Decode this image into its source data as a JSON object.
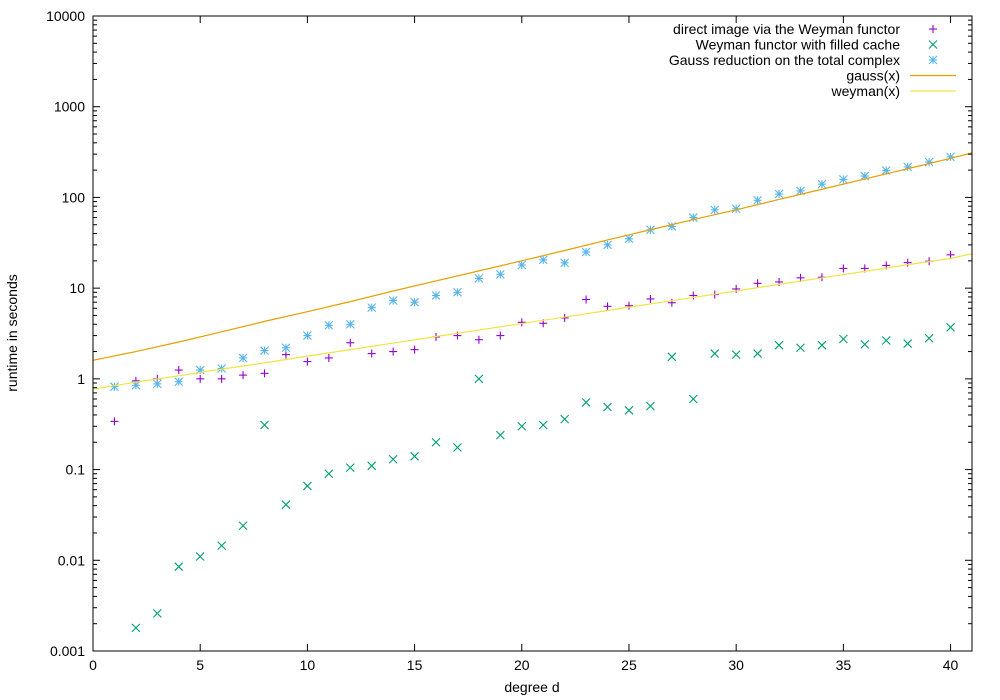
{
  "chart_data": {
    "type": "scatter",
    "xlabel": "degree d",
    "ylabel": "runtime in seconds",
    "xlim": [
      0,
      41
    ],
    "ylim": [
      0.001,
      10000
    ],
    "y_scale": "log",
    "grid": false,
    "legend_position": "top-right",
    "x_ticks": [
      "0",
      "5",
      "10",
      "15",
      "20",
      "25",
      "30",
      "35",
      "40"
    ],
    "y_ticks": [
      "0.001",
      "0.01",
      "0.1",
      "1",
      "10",
      "100",
      "1000",
      "10000"
    ],
    "series": [
      {
        "name": "direct image via the Weyman functor",
        "kind": "points",
        "marker": "plus",
        "color": "#9400d3",
        "x": [
          1,
          2,
          3,
          4,
          5,
          6,
          7,
          8,
          9,
          10,
          11,
          12,
          13,
          14,
          15,
          16,
          17,
          18,
          19,
          20,
          21,
          22,
          23,
          24,
          25,
          26,
          27,
          28,
          29,
          30,
          31,
          32,
          33,
          34,
          35,
          36,
          37,
          38,
          39,
          40
        ],
        "y": [
          0.34,
          0.95,
          1.0,
          1.25,
          1.0,
          1.0,
          1.1,
          1.15,
          1.85,
          1.55,
          1.7,
          2.5,
          1.9,
          2.0,
          2.1,
          2.9,
          3.0,
          2.7,
          3.0,
          4.2,
          4.1,
          4.7,
          7.5,
          6.3,
          6.4,
          7.6,
          6.9,
          8.3,
          8.5,
          9.8,
          11.3,
          11.7,
          13.0,
          13.2,
          16.5,
          16.5,
          17.8,
          19.1,
          19.8,
          23.3
        ]
      },
      {
        "name": "Weyman functor with filled cache",
        "kind": "points",
        "marker": "cross",
        "color": "#009e73",
        "x": [
          2,
          3,
          4,
          5,
          6,
          7,
          8,
          9,
          10,
          11,
          12,
          13,
          14,
          15,
          16,
          17,
          18,
          19,
          20,
          21,
          22,
          23,
          24,
          25,
          26,
          27,
          28,
          29,
          30,
          31,
          32,
          33,
          34,
          35,
          36,
          37,
          38,
          39,
          40
        ],
        "y": [
          0.0018,
          0.0026,
          0.0085,
          0.011,
          0.0145,
          0.024,
          0.31,
          0.041,
          0.066,
          0.09,
          0.105,
          0.11,
          0.13,
          0.14,
          0.2,
          0.175,
          1.0,
          0.24,
          0.3,
          0.31,
          0.36,
          0.55,
          0.49,
          0.45,
          0.5,
          1.75,
          0.6,
          1.9,
          1.85,
          1.9,
          2.35,
          2.2,
          2.35,
          2.75,
          2.4,
          2.65,
          2.45,
          2.8,
          3.7
        ]
      },
      {
        "name": "Gauss reduction on the total complex",
        "kind": "points",
        "marker": "star",
        "color": "#56b4e9",
        "x": [
          1,
          2,
          3,
          4,
          5,
          6,
          7,
          8,
          9,
          10,
          11,
          12,
          13,
          14,
          15,
          16,
          17,
          18,
          19,
          20,
          21,
          22,
          23,
          24,
          25,
          26,
          27,
          28,
          29,
          30,
          31,
          32,
          33,
          34,
          35,
          36,
          37,
          38,
          39,
          40
        ],
        "y": [
          0.82,
          0.85,
          0.88,
          0.93,
          1.25,
          1.3,
          1.7,
          2.05,
          2.2,
          3.0,
          3.9,
          4.0,
          6.1,
          7.3,
          7.0,
          8.3,
          9.0,
          12.8,
          14.2,
          18.0,
          20.5,
          19.0,
          25.0,
          30.0,
          35.0,
          44.0,
          48.0,
          60.0,
          73.0,
          75.0,
          93.0,
          109.0,
          118.0,
          140.0,
          158.0,
          172.0,
          198.0,
          217.0,
          245.0,
          280.0
        ]
      },
      {
        "name": "gauss(x)",
        "kind": "line",
        "color": "#e69f00",
        "x": [
          0,
          2,
          4,
          6,
          8,
          10,
          12,
          14,
          16,
          18,
          20,
          22,
          24,
          26,
          28,
          30,
          32,
          34,
          36,
          38,
          40,
          41
        ],
        "y": [
          1.6,
          2.0,
          2.55,
          3.3,
          4.3,
          5.5,
          7.1,
          9.3,
          12.0,
          15.5,
          20.0,
          26.0,
          34.0,
          44.0,
          57.0,
          73.0,
          95.0,
          123.0,
          160.0,
          207.0,
          270.0,
          310.0
        ]
      },
      {
        "name": "weyman(x)",
        "kind": "line",
        "color": "#f0e442",
        "x": [
          0,
          2,
          4,
          6,
          8,
          10,
          12,
          14,
          16,
          18,
          20,
          22,
          24,
          26,
          28,
          30,
          32,
          34,
          36,
          38,
          40,
          41
        ],
        "y": [
          0.77,
          0.92,
          1.08,
          1.28,
          1.5,
          1.78,
          2.1,
          2.48,
          2.93,
          3.45,
          4.07,
          4.8,
          5.67,
          6.7,
          7.9,
          9.3,
          11.0,
          13.0,
          15.3,
          18.1,
          21.3,
          24.0
        ]
      }
    ]
  }
}
